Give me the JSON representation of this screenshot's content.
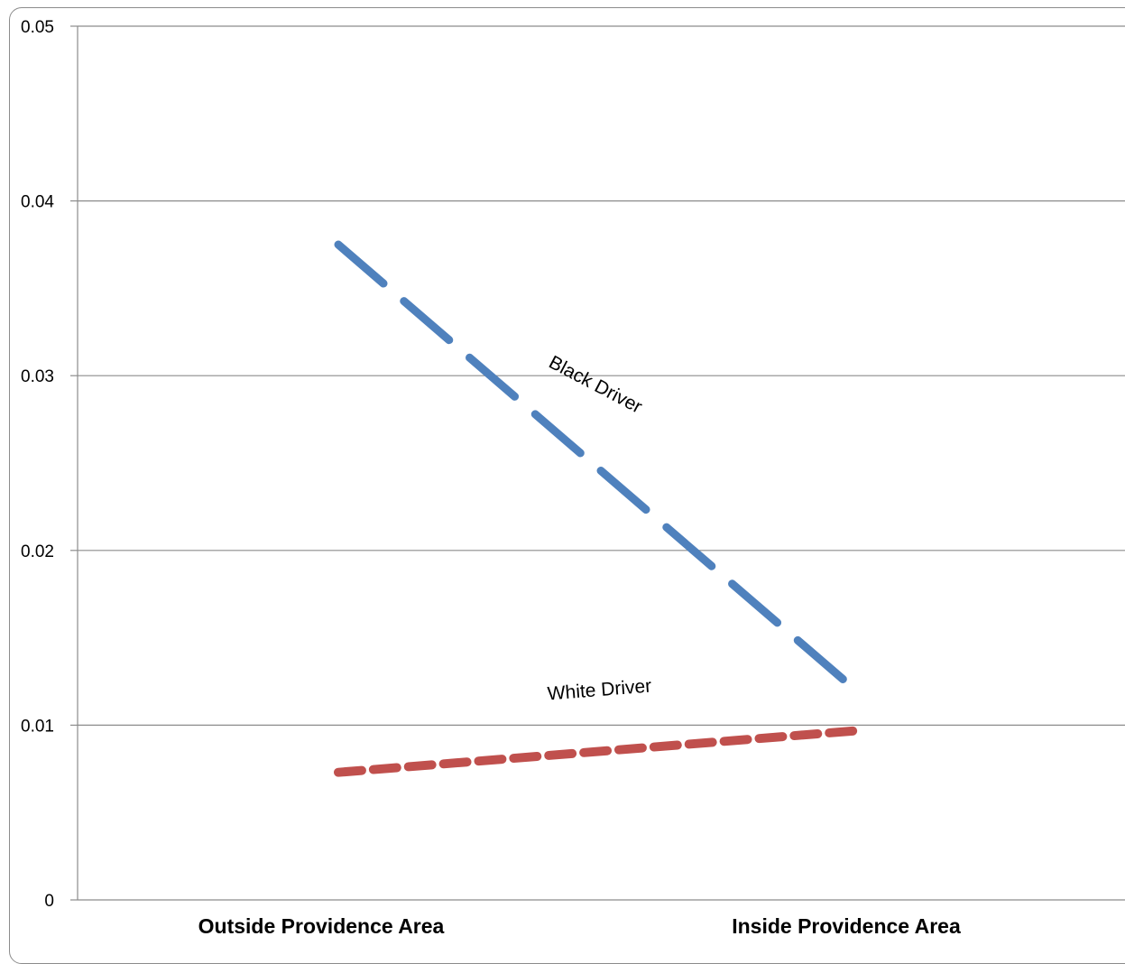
{
  "chart_data": {
    "type": "line",
    "categories": [
      "Outside  Providence Area",
      "Inside Providence Area"
    ],
    "series": [
      {
        "name": "Black Driver",
        "values": [
          0.0375,
          0.0118
        ],
        "color": "#4f81bd",
        "dash": "long-dash"
      },
      {
        "name": "White Driver",
        "values": [
          0.0073,
          0.0097
        ],
        "color": "#c0504d",
        "dash": "short-dash"
      }
    ],
    "ylim": [
      0,
      0.05
    ],
    "yticks": [
      "0",
      "0.01",
      "0.02",
      "0.03",
      "0.04",
      "0.05"
    ],
    "grid": true,
    "legend": "none",
    "title": "",
    "xlabel": "",
    "ylabel": ""
  }
}
